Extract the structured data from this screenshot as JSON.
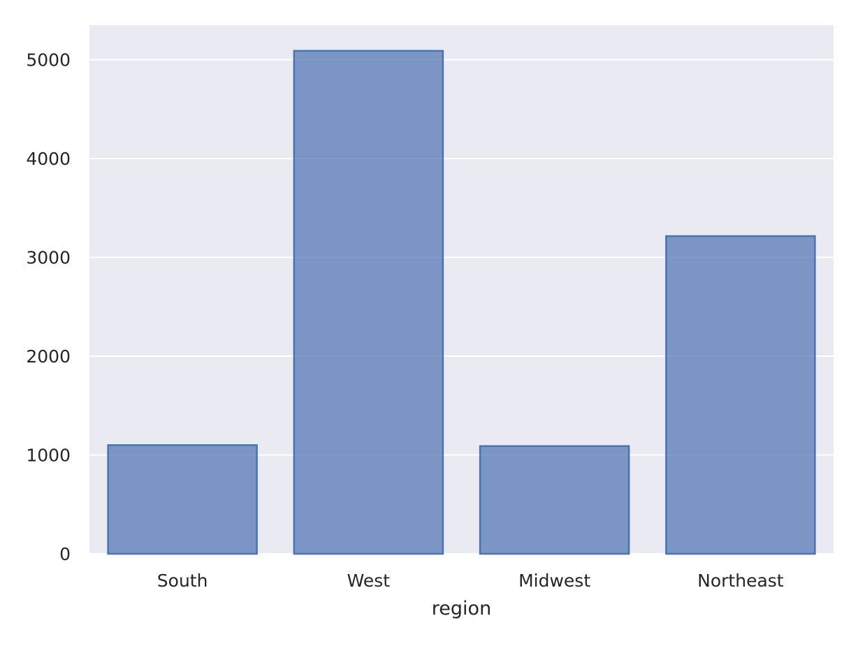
{
  "chart_data": {
    "type": "bar",
    "title": "",
    "xlabel": "region",
    "ylabel": "",
    "categories": [
      "South",
      "West",
      "Midwest",
      "Northeast"
    ],
    "values": [
      1100,
      5090,
      1090,
      3215
    ],
    "ylim": [
      0,
      5350
    ],
    "yticks": [
      0,
      1000,
      2000,
      3000,
      4000,
      5000
    ],
    "grid": true,
    "legend": "none",
    "colors": {
      "background": "#eaeaf2",
      "bar_fill": "#4c72b0",
      "bar_fill_opacity": 0.7,
      "bar_edge": "#4c72b0",
      "grid": "#ffffff"
    }
  }
}
